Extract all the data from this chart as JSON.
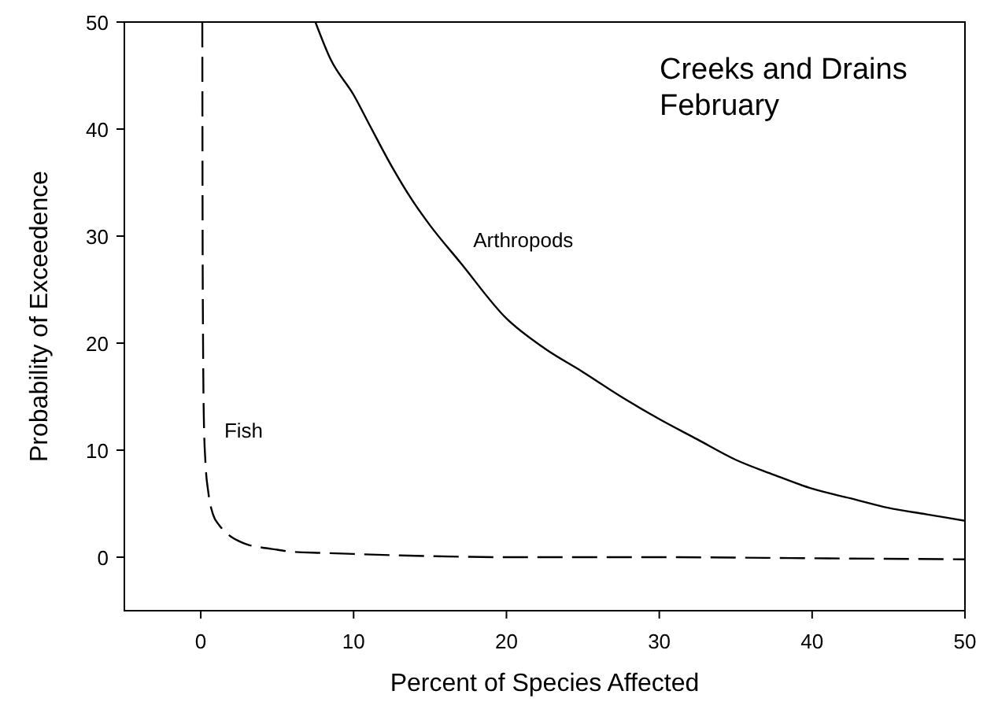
{
  "chart_data": {
    "type": "line",
    "title": "Creeks and Drains",
    "subtitle": "February",
    "xlabel": "Percent of Species Affected",
    "ylabel": "Probability of Exceedence",
    "xlim": [
      -5,
      50
    ],
    "ylim": [
      -5,
      50
    ],
    "xticks": [
      0,
      10,
      20,
      30,
      40,
      50
    ],
    "yticks": [
      0,
      10,
      20,
      30,
      40,
      50
    ],
    "grid": false,
    "series": [
      {
        "name": "Arthropods",
        "color": "#000000",
        "line_style": "solid",
        "x": [
          7.5,
          8.5,
          10,
          11,
          12.5,
          14,
          15,
          17,
          20,
          22.5,
          25,
          27.5,
          30,
          32.5,
          35,
          37.5,
          40,
          42.5,
          45,
          47.5,
          50
        ],
        "values": [
          50,
          46.5,
          43.2,
          40.5,
          36.5,
          33,
          31,
          27.5,
          22.3,
          19.5,
          17.3,
          15,
          12.9,
          11,
          9.1,
          7.7,
          6.4,
          5.5,
          4.6,
          4,
          3.4
        ]
      },
      {
        "name": "Fish",
        "color": "#000000",
        "line_style": "dashed",
        "x": [
          0.1,
          0.12,
          0.15,
          0.2,
          0.3,
          0.5,
          0.8,
          1.2,
          1.5,
          2,
          2.5,
          3,
          4,
          5,
          6,
          8,
          10,
          15,
          20,
          25,
          30,
          40,
          50
        ],
        "values": [
          50,
          30,
          20,
          13,
          9,
          6,
          4,
          3,
          2.5,
          1.9,
          1.5,
          1.2,
          0.9,
          0.7,
          0.5,
          0.4,
          0.3,
          0.1,
          0,
          0,
          0,
          -0.1,
          -0.2
        ]
      }
    ]
  }
}
